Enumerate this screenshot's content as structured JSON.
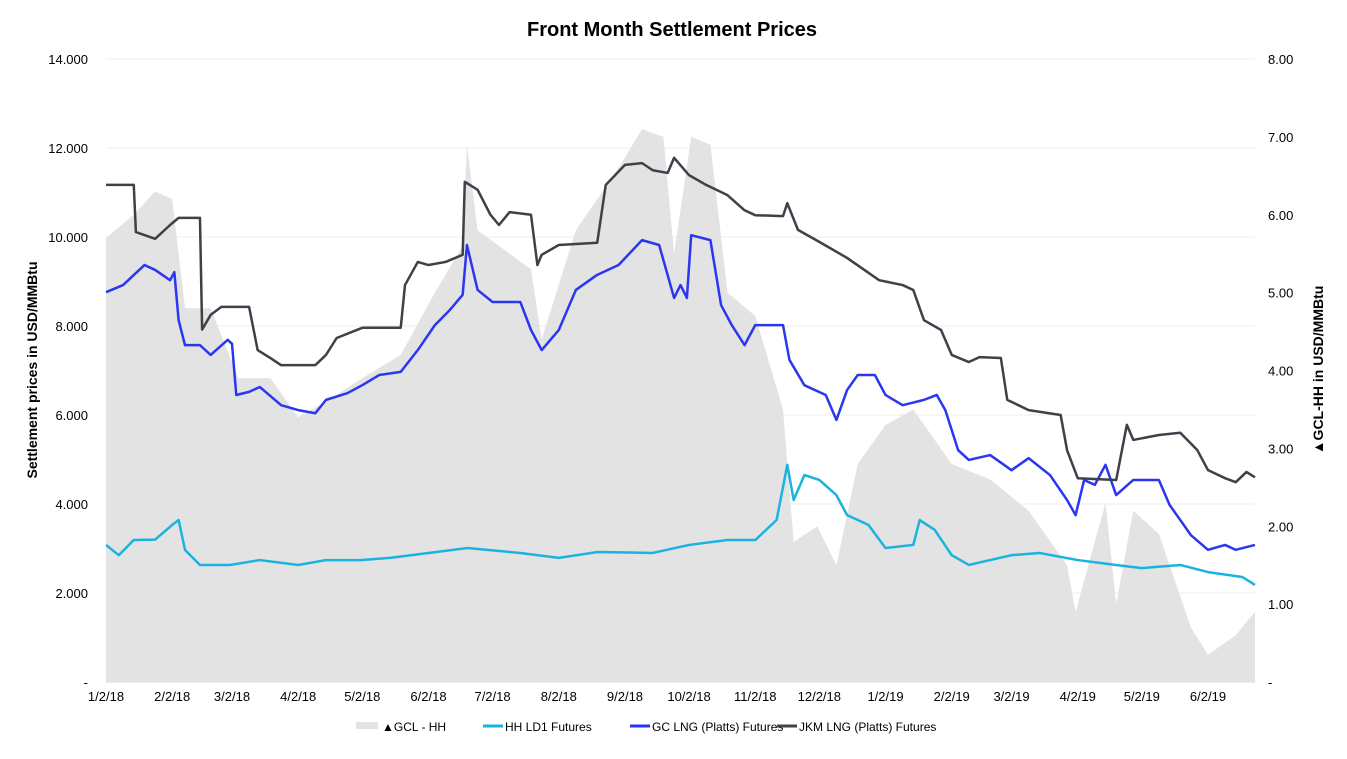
{
  "chart_data": {
    "type": "line",
    "title": "Front Month Settlement Prices",
    "ylabel": "Settlement prices in USD/MMBtu",
    "y2label": "▲GCL-HH in USD/MMBtu",
    "ylim": [
      0,
      14
    ],
    "y2lim": [
      0,
      8
    ],
    "xlim": [
      "2018-01-02",
      "2019-06-24"
    ],
    "grid": true,
    "legend_position": "bottom",
    "y_ticks": [
      "-",
      "2.000",
      "4.000",
      "6.000",
      "8.000",
      "10.000",
      "12.000",
      "14.000"
    ],
    "y2_ticks": [
      "-",
      "1.00",
      "2.00",
      "3.00",
      "4.00",
      "5.00",
      "6.00",
      "7.00",
      "8.00"
    ],
    "x_ticks": [
      {
        "date": "2018-01-02",
        "label": "1/2/18"
      },
      {
        "date": "2018-02-02",
        "label": "2/2/18"
      },
      {
        "date": "2018-03-02",
        "label": "3/2/18"
      },
      {
        "date": "2018-04-02",
        "label": "4/2/18"
      },
      {
        "date": "2018-05-02",
        "label": "5/2/18"
      },
      {
        "date": "2018-06-02",
        "label": "6/2/18"
      },
      {
        "date": "2018-07-02",
        "label": "7/2/18"
      },
      {
        "date": "2018-08-02",
        "label": "8/2/18"
      },
      {
        "date": "2018-09-02",
        "label": "9/2/18"
      },
      {
        "date": "2018-10-02",
        "label": "10/2/18"
      },
      {
        "date": "2018-11-02",
        "label": "11/2/18"
      },
      {
        "date": "2018-12-02",
        "label": "12/2/18"
      },
      {
        "date": "2019-01-02",
        "label": "1/2/19"
      },
      {
        "date": "2019-02-02",
        "label": "2/2/19"
      },
      {
        "date": "2019-03-02",
        "label": "3/2/19"
      },
      {
        "date": "2019-04-02",
        "label": "4/2/19"
      },
      {
        "date": "2019-05-02",
        "label": "5/2/19"
      },
      {
        "date": "2019-06-02",
        "label": "6/2/19"
      }
    ],
    "series": [
      {
        "name": "▲GCL - HH",
        "kind": "area",
        "axis": "right",
        "color": "#e3e3e3",
        "points": [
          [
            "2018-01-02",
            5.7
          ],
          [
            "2018-01-15",
            6.0
          ],
          [
            "2018-01-25",
            6.3
          ],
          [
            "2018-02-02",
            6.2
          ],
          [
            "2018-02-08",
            4.8
          ],
          [
            "2018-02-20",
            4.8
          ],
          [
            "2018-03-05",
            3.9
          ],
          [
            "2018-03-20",
            3.9
          ],
          [
            "2018-04-02",
            3.4
          ],
          [
            "2018-04-15",
            3.6
          ],
          [
            "2018-05-02",
            3.9
          ],
          [
            "2018-05-20",
            4.2
          ],
          [
            "2018-06-05",
            5.0
          ],
          [
            "2018-06-18",
            5.6
          ],
          [
            "2018-06-20",
            6.9
          ],
          [
            "2018-06-25",
            5.8
          ],
          [
            "2018-07-05",
            5.6
          ],
          [
            "2018-07-20",
            5.3
          ],
          [
            "2018-07-25",
            4.4
          ],
          [
            "2018-08-10",
            5.8
          ],
          [
            "2018-08-30",
            6.6
          ],
          [
            "2018-09-10",
            7.1
          ],
          [
            "2018-09-20",
            7.0
          ],
          [
            "2018-09-25",
            5.5
          ],
          [
            "2018-10-03",
            7.0
          ],
          [
            "2018-10-12",
            6.9
          ],
          [
            "2018-10-20",
            5.0
          ],
          [
            "2018-11-02",
            4.7
          ],
          [
            "2018-11-15",
            3.5
          ],
          [
            "2018-11-20",
            1.8
          ],
          [
            "2018-12-01",
            2.0
          ],
          [
            "2018-12-10",
            1.5
          ],
          [
            "2018-12-20",
            2.8
          ],
          [
            "2019-01-02",
            3.3
          ],
          [
            "2019-01-15",
            3.5
          ],
          [
            "2019-02-02",
            2.8
          ],
          [
            "2019-02-20",
            2.6
          ],
          [
            "2019-03-10",
            2.2
          ],
          [
            "2019-03-28",
            1.5
          ],
          [
            "2019-04-01",
            0.9
          ],
          [
            "2019-04-15",
            2.3
          ],
          [
            "2019-04-20",
            1.0
          ],
          [
            "2019-04-28",
            2.2
          ],
          [
            "2019-05-10",
            1.9
          ],
          [
            "2019-05-25",
            0.7
          ],
          [
            "2019-06-02",
            0.35
          ],
          [
            "2019-06-15",
            0.6
          ],
          [
            "2019-06-24",
            0.9
          ]
        ]
      },
      {
        "name": "HH LD1 Futures",
        "kind": "line",
        "axis": "left",
        "color": "#1ab3e0",
        "points": [
          [
            "2018-01-02",
            3.08
          ],
          [
            "2018-01-08",
            2.85
          ],
          [
            "2018-01-15",
            3.19
          ],
          [
            "2018-01-25",
            3.2
          ],
          [
            "2018-02-02",
            3.53
          ],
          [
            "2018-02-05",
            3.64
          ],
          [
            "2018-02-08",
            2.97
          ],
          [
            "2018-02-15",
            2.63
          ],
          [
            "2018-03-01",
            2.63
          ],
          [
            "2018-03-15",
            2.74
          ],
          [
            "2018-04-02",
            2.63
          ],
          [
            "2018-04-15",
            2.74
          ],
          [
            "2018-05-01",
            2.74
          ],
          [
            "2018-05-15",
            2.79
          ],
          [
            "2018-06-02",
            2.9
          ],
          [
            "2018-06-20",
            3.01
          ],
          [
            "2018-07-15",
            2.9
          ],
          [
            "2018-08-02",
            2.79
          ],
          [
            "2018-08-20",
            2.92
          ],
          [
            "2018-09-15",
            2.9
          ],
          [
            "2018-10-02",
            3.08
          ],
          [
            "2018-10-20",
            3.19
          ],
          [
            "2018-11-02",
            3.19
          ],
          [
            "2018-11-12",
            3.64
          ],
          [
            "2018-11-17",
            4.88
          ],
          [
            "2018-11-20",
            4.09
          ],
          [
            "2018-11-25",
            4.65
          ],
          [
            "2018-12-02",
            4.54
          ],
          [
            "2018-12-10",
            4.2
          ],
          [
            "2018-12-15",
            3.75
          ],
          [
            "2018-12-25",
            3.53
          ],
          [
            "2019-01-02",
            3.01
          ],
          [
            "2019-01-15",
            3.08
          ],
          [
            "2019-01-18",
            3.64
          ],
          [
            "2019-01-25",
            3.42
          ],
          [
            "2019-02-02",
            2.85
          ],
          [
            "2019-02-10",
            2.63
          ],
          [
            "2019-03-02",
            2.85
          ],
          [
            "2019-03-15",
            2.9
          ],
          [
            "2019-04-02",
            2.74
          ],
          [
            "2019-04-20",
            2.63
          ],
          [
            "2019-05-02",
            2.56
          ],
          [
            "2019-05-20",
            2.63
          ],
          [
            "2019-06-02",
            2.47
          ],
          [
            "2019-06-18",
            2.36
          ],
          [
            "2019-06-24",
            2.18
          ]
        ]
      },
      {
        "name": "GC LNG (Platts) Futures",
        "kind": "line",
        "axis": "left",
        "color": "#2b36f0",
        "points": [
          [
            "2018-01-02",
            8.76
          ],
          [
            "2018-01-10",
            8.92
          ],
          [
            "2018-01-20",
            9.37
          ],
          [
            "2018-01-25",
            9.26
          ],
          [
            "2018-02-01",
            9.03
          ],
          [
            "2018-02-03",
            9.21
          ],
          [
            "2018-02-05",
            8.13
          ],
          [
            "2018-02-08",
            7.57
          ],
          [
            "2018-02-15",
            7.57
          ],
          [
            "2018-02-20",
            7.35
          ],
          [
            "2018-02-28",
            7.69
          ],
          [
            "2018-03-02",
            7.6
          ],
          [
            "2018-03-04",
            6.45
          ],
          [
            "2018-03-10",
            6.52
          ],
          [
            "2018-03-15",
            6.63
          ],
          [
            "2018-03-25",
            6.22
          ],
          [
            "2018-04-02",
            6.11
          ],
          [
            "2018-04-10",
            6.04
          ],
          [
            "2018-04-15",
            6.34
          ],
          [
            "2018-04-25",
            6.49
          ],
          [
            "2018-05-02",
            6.67
          ],
          [
            "2018-05-10",
            6.9
          ],
          [
            "2018-05-20",
            6.97
          ],
          [
            "2018-05-28",
            7.46
          ],
          [
            "2018-06-05",
            8.02
          ],
          [
            "2018-06-12",
            8.36
          ],
          [
            "2018-06-18",
            8.7
          ],
          [
            "2018-06-20",
            9.82
          ],
          [
            "2018-06-25",
            8.81
          ],
          [
            "2018-07-02",
            8.54
          ],
          [
            "2018-07-15",
            8.54
          ],
          [
            "2018-07-20",
            7.91
          ],
          [
            "2018-07-25",
            7.46
          ],
          [
            "2018-08-02",
            7.91
          ],
          [
            "2018-08-10",
            8.81
          ],
          [
            "2018-08-20",
            9.15
          ],
          [
            "2018-08-30",
            9.37
          ],
          [
            "2018-09-10",
            9.93
          ],
          [
            "2018-09-18",
            9.82
          ],
          [
            "2018-09-25",
            8.63
          ],
          [
            "2018-09-28",
            8.92
          ],
          [
            "2018-10-01",
            8.63
          ],
          [
            "2018-10-03",
            10.04
          ],
          [
            "2018-10-12",
            9.93
          ],
          [
            "2018-10-17",
            8.47
          ],
          [
            "2018-10-22",
            8.02
          ],
          [
            "2018-10-28",
            7.57
          ],
          [
            "2018-11-02",
            8.02
          ],
          [
            "2018-11-15",
            8.02
          ],
          [
            "2018-11-18",
            7.24
          ],
          [
            "2018-11-25",
            6.67
          ],
          [
            "2018-12-05",
            6.45
          ],
          [
            "2018-12-10",
            5.89
          ],
          [
            "2018-12-15",
            6.56
          ],
          [
            "2018-12-20",
            6.9
          ],
          [
            "2018-12-28",
            6.9
          ],
          [
            "2019-01-02",
            6.45
          ],
          [
            "2019-01-10",
            6.22
          ],
          [
            "2019-01-20",
            6.34
          ],
          [
            "2019-01-26",
            6.45
          ],
          [
            "2019-01-30",
            6.11
          ],
          [
            "2019-02-05",
            5.21
          ],
          [
            "2019-02-10",
            4.99
          ],
          [
            "2019-02-20",
            5.1
          ],
          [
            "2019-03-02",
            4.76
          ],
          [
            "2019-03-10",
            5.03
          ],
          [
            "2019-03-20",
            4.65
          ],
          [
            "2019-03-28",
            4.09
          ],
          [
            "2019-04-01",
            3.75
          ],
          [
            "2019-04-05",
            4.54
          ],
          [
            "2019-04-10",
            4.43
          ],
          [
            "2019-04-15",
            4.88
          ],
          [
            "2019-04-20",
            4.2
          ],
          [
            "2019-04-28",
            4.54
          ],
          [
            "2019-05-10",
            4.54
          ],
          [
            "2019-05-15",
            3.98
          ],
          [
            "2019-05-25",
            3.3
          ],
          [
            "2019-06-02",
            2.97
          ],
          [
            "2019-06-10",
            3.08
          ],
          [
            "2019-06-15",
            2.97
          ],
          [
            "2019-06-24",
            3.08
          ]
        ]
      },
      {
        "name": "JKM LNG (Platts) Futures",
        "kind": "line",
        "axis": "left",
        "color": "#3d4149",
        "points": [
          [
            "2018-01-02",
            11.17
          ],
          [
            "2018-01-15",
            11.17
          ],
          [
            "2018-01-16",
            10.11
          ],
          [
            "2018-01-25",
            9.96
          ],
          [
            "2018-02-01",
            10.27
          ],
          [
            "2018-02-05",
            10.43
          ],
          [
            "2018-02-15",
            10.43
          ],
          [
            "2018-02-16",
            7.92
          ],
          [
            "2018-02-20",
            8.25
          ],
          [
            "2018-02-25",
            8.43
          ],
          [
            "2018-03-10",
            8.43
          ],
          [
            "2018-03-14",
            7.46
          ],
          [
            "2018-03-20",
            7.28
          ],
          [
            "2018-03-25",
            7.12
          ],
          [
            "2018-04-10",
            7.12
          ],
          [
            "2018-04-15",
            7.35
          ],
          [
            "2018-04-20",
            7.73
          ],
          [
            "2018-05-02",
            7.96
          ],
          [
            "2018-05-20",
            7.96
          ],
          [
            "2018-05-22",
            8.92
          ],
          [
            "2018-05-28",
            9.44
          ],
          [
            "2018-06-02",
            9.37
          ],
          [
            "2018-06-10",
            9.44
          ],
          [
            "2018-06-18",
            9.6
          ],
          [
            "2018-06-19",
            11.24
          ],
          [
            "2018-06-25",
            11.06
          ],
          [
            "2018-07-01",
            10.5
          ],
          [
            "2018-07-05",
            10.27
          ],
          [
            "2018-07-10",
            10.56
          ],
          [
            "2018-07-20",
            10.5
          ],
          [
            "2018-07-23",
            9.37
          ],
          [
            "2018-07-25",
            9.6
          ],
          [
            "2018-08-02",
            9.82
          ],
          [
            "2018-08-20",
            9.87
          ],
          [
            "2018-08-24",
            11.17
          ],
          [
            "2018-09-02",
            11.62
          ],
          [
            "2018-09-10",
            11.66
          ],
          [
            "2018-09-15",
            11.5
          ],
          [
            "2018-09-22",
            11.44
          ],
          [
            "2018-09-25",
            11.78
          ],
          [
            "2018-10-02",
            11.39
          ],
          [
            "2018-10-10",
            11.17
          ],
          [
            "2018-10-20",
            10.94
          ],
          [
            "2018-10-28",
            10.6
          ],
          [
            "2018-11-02",
            10.49
          ],
          [
            "2018-11-15",
            10.47
          ],
          [
            "2018-11-17",
            10.76
          ],
          [
            "2018-11-22",
            10.16
          ],
          [
            "2018-12-02",
            9.89
          ],
          [
            "2018-12-15",
            9.53
          ],
          [
            "2018-12-30",
            9.03
          ],
          [
            "2019-01-10",
            8.92
          ],
          [
            "2019-01-15",
            8.81
          ],
          [
            "2019-01-20",
            8.13
          ],
          [
            "2019-01-28",
            7.91
          ],
          [
            "2019-02-02",
            7.35
          ],
          [
            "2019-02-10",
            7.19
          ],
          [
            "2019-02-15",
            7.3
          ],
          [
            "2019-02-25",
            7.28
          ],
          [
            "2019-02-28",
            6.34
          ],
          [
            "2019-03-10",
            6.11
          ],
          [
            "2019-03-25",
            6.0
          ],
          [
            "2019-03-28",
            5.21
          ],
          [
            "2019-04-02",
            4.58
          ],
          [
            "2019-04-20",
            4.54
          ],
          [
            "2019-04-25",
            5.78
          ],
          [
            "2019-04-28",
            5.44
          ],
          [
            "2019-05-10",
            5.55
          ],
          [
            "2019-05-20",
            5.6
          ],
          [
            "2019-05-28",
            5.21
          ],
          [
            "2019-06-02",
            4.76
          ],
          [
            "2019-06-10",
            4.58
          ],
          [
            "2019-06-15",
            4.49
          ],
          [
            "2019-06-20",
            4.72
          ],
          [
            "2019-06-24",
            4.6
          ]
        ]
      }
    ]
  }
}
